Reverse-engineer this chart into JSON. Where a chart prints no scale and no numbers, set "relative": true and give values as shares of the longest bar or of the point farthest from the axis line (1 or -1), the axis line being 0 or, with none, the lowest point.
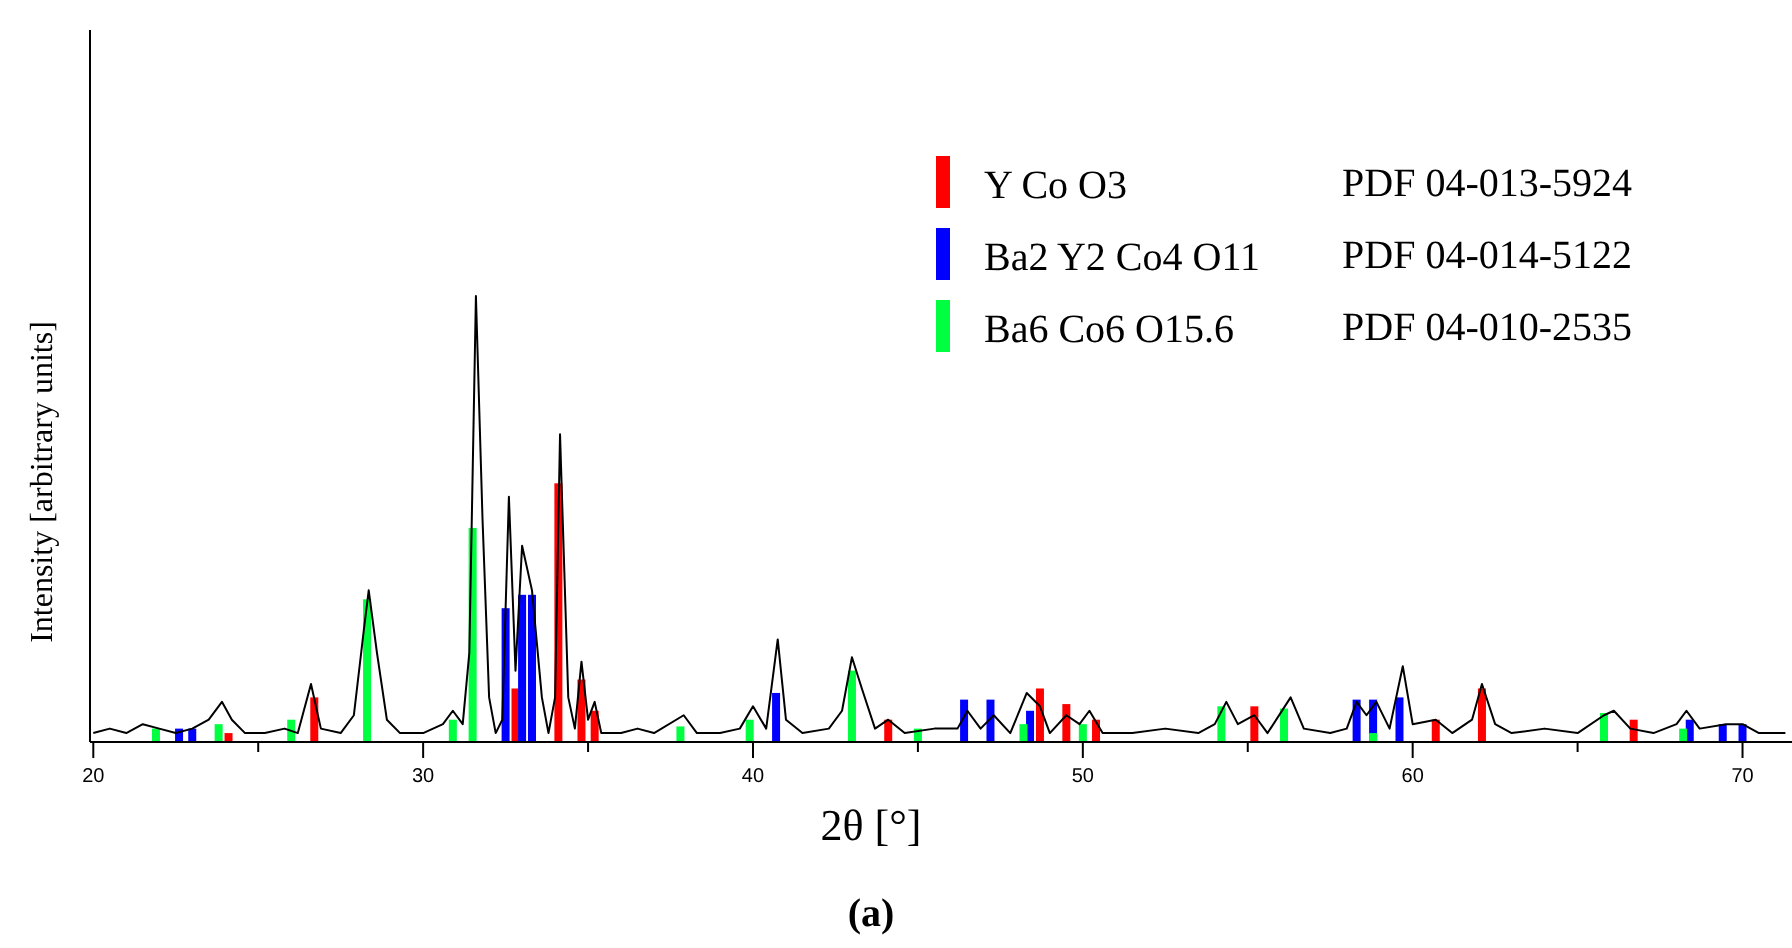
{
  "chart_data": {
    "type": "bar",
    "relative": true,
    "xlabel": "2θ [°]",
    "ylabel": "Intensity [arbitrary units]",
    "xlim": [
      19.9,
      71.5
    ],
    "xticks": [
      20,
      {
        "value": 25,
        "label": null
      },
      30,
      {
        "value": 35,
        "label": null
      },
      40,
      {
        "value": 45,
        "label": null
      },
      50,
      {
        "value": 55,
        "label": null
      },
      60,
      {
        "value": 65,
        "label": null
      },
      70
    ],
    "legend": "top right",
    "grid": false,
    "annotations": [
      "PDF 04-013-5924",
      "PDF 04-014-5122",
      "PDF 04-010-2535",
      "(a)"
    ],
    "series": [
      {
        "type": "line",
        "color": "#000000",
        "x": [
          20,
          20.5,
          21,
          21.5,
          22,
          22.5,
          23,
          23.5,
          23.9,
          24.2,
          24.6,
          25.2,
          25.8,
          26.2,
          26.6,
          26.9,
          27.5,
          27.9,
          28.2,
          28.35,
          28.6,
          28.9,
          29.3,
          30,
          30.6,
          30.9,
          31.2,
          31.4,
          31.6,
          31.8,
          32.0,
          32.2,
          32.4,
          32.6,
          32.8,
          33.0,
          33.3,
          33.6,
          33.8,
          34.0,
          34.15,
          34.4,
          34.6,
          34.8,
          35.0,
          35.2,
          35.4,
          36,
          36.5,
          37,
          37.9,
          38.3,
          39,
          39.6,
          40.0,
          40.4,
          40.75,
          41.0,
          41.5,
          42.3,
          42.7,
          43.0,
          43.3,
          43.7,
          44.1,
          44.6,
          45.5,
          46.2,
          46.5,
          46.9,
          47.3,
          47.8,
          48.3,
          48.7,
          49.0,
          49.5,
          49.9,
          50.2,
          50.6,
          51.5,
          52.5,
          53.5,
          54.0,
          54.35,
          54.7,
          55.2,
          55.6,
          56.3,
          56.7,
          57.5,
          58.0,
          58.3,
          58.6,
          58.9,
          59.3,
          59.7,
          60.0,
          60.7,
          61.2,
          61.8,
          62.1,
          62.5,
          63,
          64,
          65,
          65.8,
          66.1,
          66.6,
          67.3,
          68.0,
          68.3,
          68.7,
          69.5,
          70.0,
          70.5,
          71.3
        ],
        "values": [
          0.02,
          0.03,
          0.02,
          0.04,
          0.03,
          0.02,
          0.03,
          0.05,
          0.09,
          0.05,
          0.02,
          0.02,
          0.03,
          0.02,
          0.13,
          0.03,
          0.02,
          0.06,
          0.25,
          0.34,
          0.2,
          0.05,
          0.02,
          0.02,
          0.04,
          0.07,
          0.04,
          0.2,
          1.0,
          0.5,
          0.1,
          0.02,
          0.05,
          0.55,
          0.16,
          0.44,
          0.34,
          0.1,
          0.02,
          0.1,
          0.69,
          0.1,
          0.03,
          0.18,
          0.05,
          0.09,
          0.02,
          0.02,
          0.03,
          0.02,
          0.06,
          0.02,
          0.02,
          0.03,
          0.08,
          0.03,
          0.23,
          0.05,
          0.02,
          0.03,
          0.07,
          0.19,
          0.12,
          0.03,
          0.05,
          0.02,
          0.03,
          0.03,
          0.07,
          0.03,
          0.06,
          0.02,
          0.11,
          0.08,
          0.02,
          0.06,
          0.04,
          0.07,
          0.02,
          0.02,
          0.03,
          0.02,
          0.04,
          0.09,
          0.04,
          0.06,
          0.02,
          0.1,
          0.03,
          0.02,
          0.03,
          0.09,
          0.06,
          0.09,
          0.03,
          0.17,
          0.04,
          0.05,
          0.02,
          0.05,
          0.13,
          0.04,
          0.02,
          0.03,
          0.02,
          0.06,
          0.07,
          0.03,
          0.02,
          0.04,
          0.07,
          0.03,
          0.04,
          0.04,
          0.02,
          0.02
        ]
      },
      {
        "name": "Y Co O3",
        "color": "#ff0000",
        "x": [
          24.1,
          26.7,
          32.8,
          34.1,
          34.8,
          35.2,
          44.1,
          48.7,
          49.5,
          50.4,
          55.2,
          60.7,
          62.1,
          66.7
        ],
        "values": [
          0.02,
          0.1,
          0.12,
          0.58,
          0.14,
          0.07,
          0.05,
          0.12,
          0.085,
          0.05,
          0.08,
          0.05,
          0.12,
          0.05
        ]
      },
      {
        "name": "Ba2 Y2 Co4 O11",
        "color": "#0000ff",
        "x": [
          22.6,
          23.0,
          32.5,
          33.0,
          33.3,
          40.7,
          46.4,
          47.2,
          48.4,
          58.3,
          58.8,
          59.6,
          68.4,
          69.4,
          70.0
        ],
        "values": [
          0.03,
          0.03,
          0.3,
          0.33,
          0.33,
          0.11,
          0.095,
          0.095,
          0.07,
          0.095,
          0.095,
          0.1,
          0.05,
          0.04,
          0.04
        ]
      },
      {
        "name": "Ba6 Co6 O15.6",
        "color": "#00ff40",
        "x": [
          21.9,
          23.8,
          26.0,
          28.3,
          30.9,
          31.5,
          37.8,
          39.9,
          43.0,
          45.0,
          48.2,
          50.0,
          54.2,
          56.1,
          58.8,
          65.8,
          68.2
        ],
        "values": [
          0.03,
          0.04,
          0.05,
          0.32,
          0.05,
          0.48,
          0.035,
          0.05,
          0.16,
          0.03,
          0.04,
          0.04,
          0.08,
          0.075,
          0.02,
          0.065,
          0.03
        ]
      }
    ]
  }
}
